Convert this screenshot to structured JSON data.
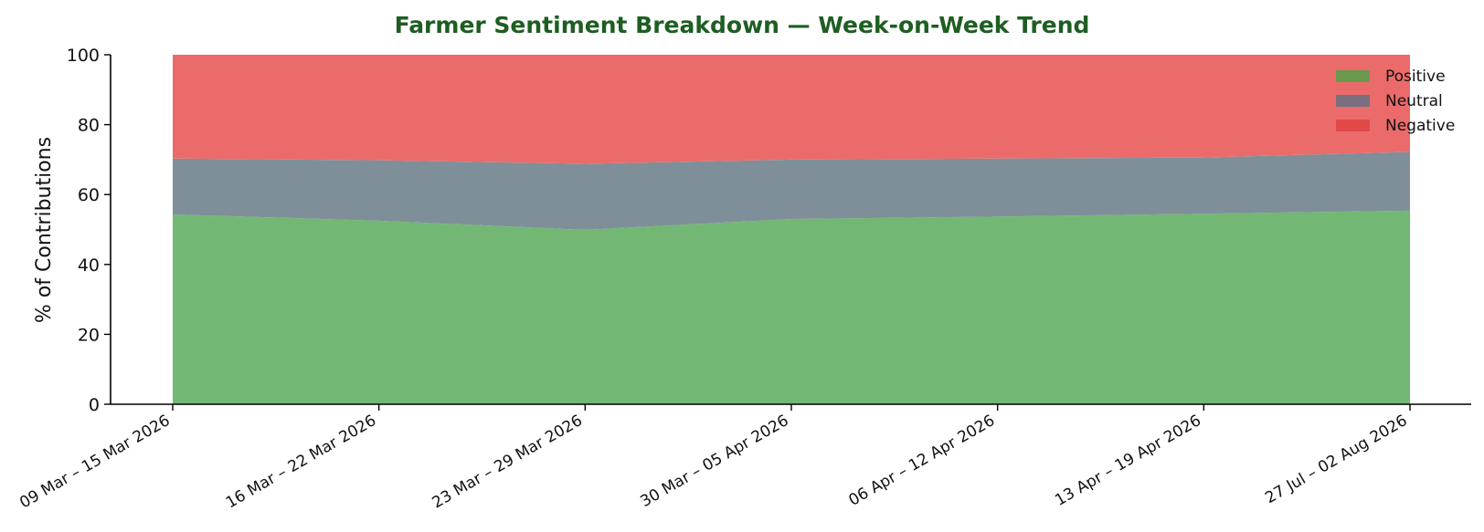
{
  "chart_data": {
    "type": "area",
    "stacked": true,
    "title": "Farmer Sentiment Breakdown — Week-on-Week Trend",
    "xlabel": "",
    "ylabel": "% of Contributions",
    "ylim": [
      0,
      100
    ],
    "yticks": [
      "0",
      "20",
      "40",
      "60",
      "80",
      "100"
    ],
    "categories": [
      "09 Mar – 15 Mar 2026",
      "16 Mar – 22 Mar 2026",
      "23 Mar – 29 Mar 2026",
      "30 Mar – 05 Apr 2026",
      "06 Apr – 12 Apr 2026",
      "13 Apr – 19 Apr 2026",
      "27 Jul – 02 Aug 2026"
    ],
    "series": [
      {
        "name": "Positive",
        "values": [
          54.3,
          52.5,
          49.9,
          53.0,
          53.7,
          54.5,
          55.4
        ],
        "color": "#72b874",
        "legend_color": "#6a994e"
      },
      {
        "name": "Neutral",
        "values": [
          16.0,
          17.3,
          18.9,
          17.0,
          16.6,
          16.1,
          16.8
        ],
        "color": "#7f8f99",
        "legend_color": "#7a6f7f"
      },
      {
        "name": "Negative",
        "values": [
          29.7,
          30.2,
          31.2,
          30.0,
          29.7,
          29.4,
          27.8
        ],
        "color": "#eb6b6b",
        "legend_color": "#e24848"
      }
    ],
    "legend_position": "top-right",
    "grid": false,
    "title_color": "#1e5e22"
  }
}
